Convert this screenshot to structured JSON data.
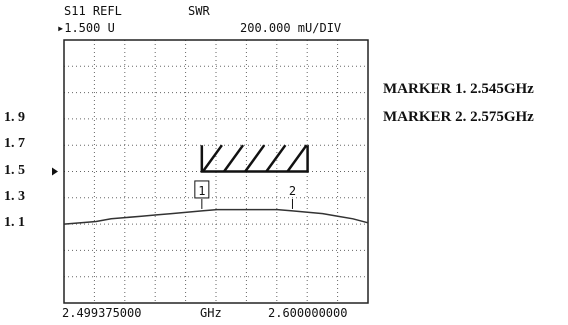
{
  "header": {
    "measurement": "S11 REFL",
    "format": "SWR",
    "reference_value": "▸1.500 U",
    "scale": "200.000 mU/DIV"
  },
  "footer": {
    "start_freq": "2.499375000",
    "unit": "GHz",
    "stop_freq": "2.600000000"
  },
  "marker_notes": [
    "MARKER 1. 2.545GHz",
    "MARKER 2. 2.575GHz"
  ],
  "colors": {
    "trace": "#333333",
    "grid": "#666666",
    "frame": "#222222"
  },
  "chart_data": {
    "type": "line",
    "title": "",
    "xlabel": "GHz",
    "ylabel": "",
    "xlim": [
      2.499375,
      2.6
    ],
    "ylim": [
      0.5,
      2.5
    ],
    "yticks": [
      1.1,
      1.3,
      1.5,
      1.7,
      1.9
    ],
    "ytick_labels": [
      "1. 1",
      "1. 3",
      "1. 5",
      "1. 7",
      "1. 9"
    ],
    "reference_level": 1.5,
    "grid": true,
    "series": [
      {
        "x": [
          2.4994,
          2.505,
          2.51,
          2.515,
          2.52,
          2.525,
          2.53,
          2.535,
          2.54,
          2.545,
          2.55,
          2.555,
          2.56,
          2.565,
          2.57,
          2.575,
          2.58,
          2.585,
          2.59,
          2.595,
          2.6
        ],
        "y": [
          1.1,
          1.11,
          1.12,
          1.14,
          1.15,
          1.16,
          1.17,
          1.18,
          1.19,
          1.2,
          1.21,
          1.21,
          1.21,
          1.21,
          1.21,
          1.2,
          1.19,
          1.18,
          1.16,
          1.14,
          1.11
        ]
      }
    ],
    "markers": [
      {
        "label": "1",
        "x": 2.545,
        "boxed": true
      },
      {
        "label": "2",
        "x": 2.575,
        "boxed": false
      }
    ],
    "spec_box": {
      "x": [
        2.545,
        2.58
      ],
      "y": [
        1.5,
        1.7
      ],
      "hatched": true
    }
  }
}
